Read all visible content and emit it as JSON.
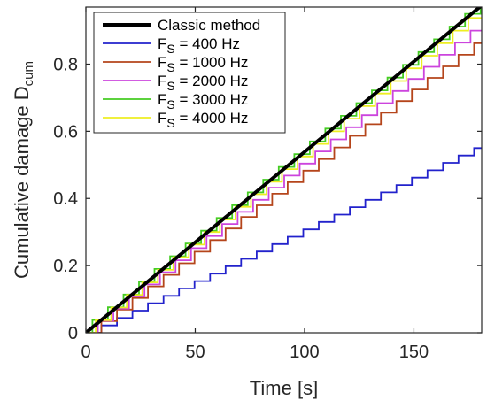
{
  "chart_data": {
    "type": "line",
    "xlabel": "Time [s]",
    "ylabel_main": "Cumulative damage D",
    "ylabel_sub": "cum",
    "xlim": [
      0,
      181
    ],
    "ylim": [
      0,
      0.97
    ],
    "xticks": [
      0,
      50,
      100,
      150
    ],
    "yticks": [
      0,
      0.2,
      0.4,
      0.6,
      0.8
    ],
    "ytick_labels": [
      "0",
      "0.2",
      "0.4",
      "0.6",
      "0.8"
    ],
    "grid": false,
    "legend_position": "top-left",
    "classic": {
      "name": "Classic method",
      "color": "#000000",
      "points": [
        [
          0,
          0
        ],
        [
          181,
          0.975
        ]
      ]
    },
    "series": [
      {
        "name_prefix": "F",
        "name_sub": "S",
        "name_suffix": " = 400 Hz",
        "color": "#2222cc",
        "step_period": 7.1,
        "step_height": 0.022,
        "offset": 7.1
      },
      {
        "name_prefix": "F",
        "name_sub": "S",
        "name_suffix": " = 1000 Hz",
        "color": "#b5451b",
        "step_period": 7.1,
        "step_height": 0.0345,
        "offset": 7.1
      },
      {
        "name_prefix": "F",
        "name_sub": "S",
        "name_suffix": " = 2000 Hz",
        "color": "#cc44dd",
        "step_period": 7.1,
        "step_height": 0.036,
        "offset": 5.5
      },
      {
        "name_prefix": "F",
        "name_sub": "S",
        "name_suffix": " = 3000 Hz",
        "color": "#44cc22",
        "step_period": 7.1,
        "step_height": 0.038,
        "offset": 3.0
      },
      {
        "name_prefix": "F",
        "name_sub": "S",
        "name_suffix": " = 4000 Hz",
        "color": "#eeee22",
        "step_period": 7.1,
        "step_height": 0.0375,
        "offset": 4.5
      }
    ]
  }
}
